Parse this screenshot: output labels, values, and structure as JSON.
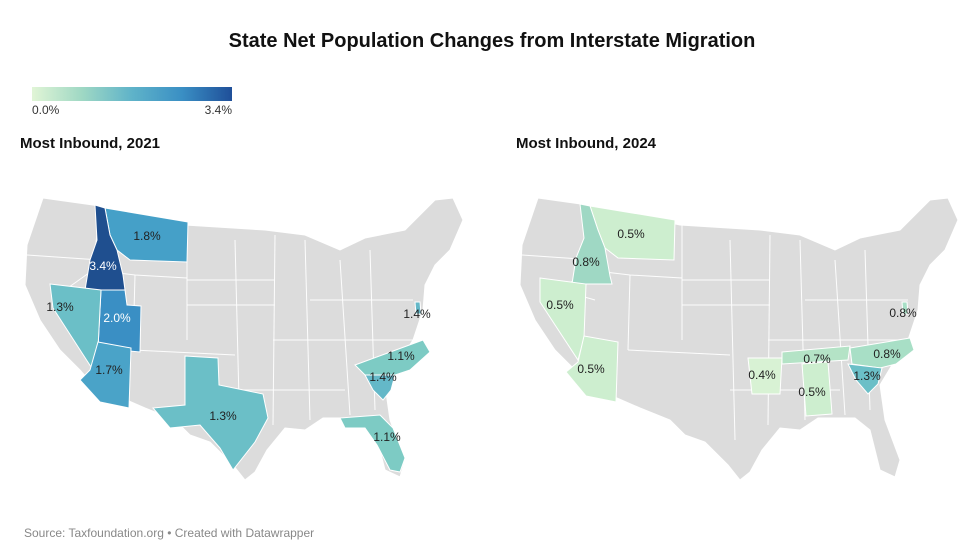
{
  "title": "State Net Population Changes from Interstate Migration",
  "legend": {
    "min_label": "0.0%",
    "max_label": "3.4%"
  },
  "maps": {
    "left": {
      "title": "Most Inbound, 2021",
      "states": [
        {
          "name": "Idaho",
          "value": 3.4,
          "label": "3.4%",
          "color": "#1f4f8f"
        },
        {
          "name": "Montana",
          "value": 1.8,
          "label": "1.8%",
          "color": "#45a0c8"
        },
        {
          "name": "Utah",
          "value": 2.0,
          "label": "2.0%",
          "color": "#3a8fc4"
        },
        {
          "name": "Nevada",
          "value": 1.3,
          "label": "1.3%",
          "color": "#6bbfc7"
        },
        {
          "name": "Arizona",
          "value": 1.7,
          "label": "1.7%",
          "color": "#4aa3c8"
        },
        {
          "name": "Texas",
          "value": 1.3,
          "label": "1.3%",
          "color": "#6bbfc7"
        },
        {
          "name": "North Carolina",
          "value": 1.1,
          "label": "1.1%",
          "color": "#7dcbc4"
        },
        {
          "name": "South Carolina",
          "value": 1.4,
          "label": "1.4%",
          "color": "#64b8c8"
        },
        {
          "name": "Florida",
          "value": 1.1,
          "label": "1.1%",
          "color": "#7dcbc4"
        },
        {
          "name": "Delaware",
          "value": 1.4,
          "label": "1.4%",
          "color": "#64b8c8"
        }
      ]
    },
    "right": {
      "title": "Most Inbound, 2024",
      "states": [
        {
          "name": "Montana",
          "value": 0.5,
          "label": "0.5%",
          "color": "#cdeecf"
        },
        {
          "name": "Idaho",
          "value": 0.8,
          "label": "0.8%",
          "color": "#9fd8c4"
        },
        {
          "name": "Nevada",
          "value": 0.5,
          "label": "0.5%",
          "color": "#cdeecf"
        },
        {
          "name": "Arizona",
          "value": 0.5,
          "label": "0.5%",
          "color": "#cdeecf"
        },
        {
          "name": "Arkansas",
          "value": 0.4,
          "label": "0.4%",
          "color": "#d8f2d4"
        },
        {
          "name": "Tennessee",
          "value": 0.7,
          "label": "0.7%",
          "color": "#b4e3c6"
        },
        {
          "name": "Alabama",
          "value": 0.5,
          "label": "0.5%",
          "color": "#cdeecf"
        },
        {
          "name": "North Carolina",
          "value": 0.8,
          "label": "0.8%",
          "color": "#a8dfc6"
        },
        {
          "name": "South Carolina",
          "value": 1.3,
          "label": "1.3%",
          "color": "#6bbfc7"
        },
        {
          "name": "Delaware",
          "value": 0.8,
          "label": "0.8%",
          "color": "#a8dfc6"
        }
      ]
    }
  },
  "source": "Source: Taxfoundation.org • Created with Datawrapper"
}
